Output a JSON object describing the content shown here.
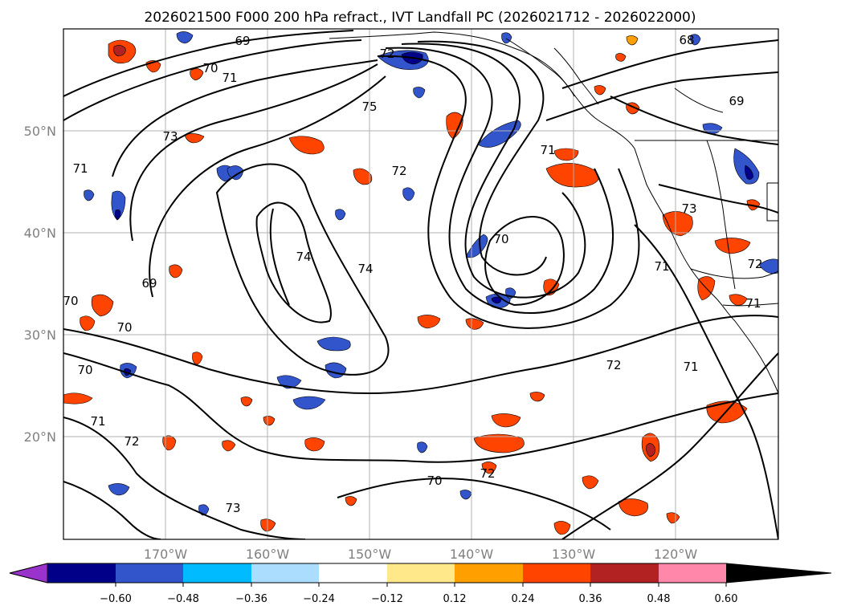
{
  "title": "2026021500 F000 200 hPa refract., IVT Landfall PC (2026021712 - 2026022000)",
  "latitude_labels": [
    "50°N",
    "40°N",
    "30°N",
    "20°N"
  ],
  "longitude_labels": [
    "170°W",
    "160°W",
    "150°W",
    "140°W",
    "130°W",
    "120°W"
  ],
  "contour_labels": [
    "69",
    "68",
    "70",
    "71",
    "72",
    "69",
    "73",
    "75",
    "71",
    "73",
    "72",
    "74",
    "74",
    "69",
    "70",
    "71",
    "70",
    "70",
    "70",
    "71",
    "72",
    "72",
    "70",
    "72",
    "73",
    "71",
    "71",
    "72",
    "71"
  ],
  "colorbar": {
    "tick_labels": [
      "−0.60",
      "−0.48",
      "−0.36",
      "−0.24",
      "−0.12",
      "0.12",
      "0.24",
      "0.36",
      "0.48",
      "0.60"
    ],
    "colors": [
      "#9933cc",
      "#000088",
      "#3355cc",
      "#00bbff",
      "#aaddff",
      "#ffffff",
      "#ffe88a",
      "#ffa000",
      "#ff4400",
      "#b22222",
      "#ff88aa"
    ]
  },
  "colors": {
    "grid": "#b0b0b0",
    "contour": "#000000",
    "coast": "#000000"
  }
}
